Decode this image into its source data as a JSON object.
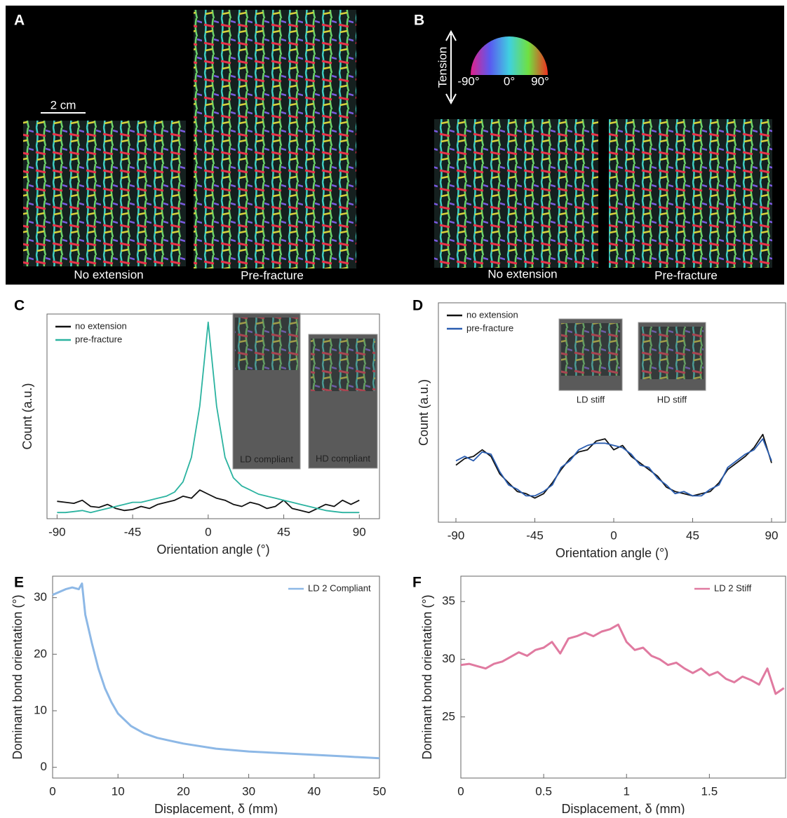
{
  "figure": {
    "panel_labels": [
      "A",
      "B",
      "C",
      "D",
      "E",
      "F"
    ],
    "scale_bar": "2 cm",
    "captions_a": [
      "No extension",
      "Pre-fracture"
    ],
    "captions_b": [
      "No extension",
      "Pre-fracture"
    ],
    "tension": "Tension",
    "colorwheel": [
      "-90°",
      "0°",
      "90°"
    ]
  },
  "chart_data": [
    {
      "type": "line",
      "xlabel": "Orientation angle (°)",
      "ylabel": "Count (a.u.)",
      "legend": "upper left",
      "insets": [
        "LD compliant",
        "HD compliant"
      ],
      "xlim": [
        -96,
        102
      ],
      "xticks": [
        -90,
        -45,
        0,
        45,
        90
      ],
      "ylim": [
        0,
        1
      ],
      "x": [
        -90,
        -85,
        -80,
        -75,
        -70,
        -65,
        -60,
        -55,
        -50,
        -45,
        -40,
        -35,
        -30,
        -25,
        -20,
        -15,
        -10,
        -5,
        0,
        5,
        10,
        15,
        20,
        25,
        30,
        35,
        40,
        45,
        50,
        55,
        60,
        65,
        70,
        75,
        80,
        85,
        90
      ],
      "series": [
        {
          "name": "no extension",
          "color": "#111111",
          "values": [
            0.085,
            0.08,
            0.075,
            0.09,
            0.06,
            0.055,
            0.07,
            0.05,
            0.04,
            0.045,
            0.06,
            0.05,
            0.07,
            0.08,
            0.09,
            0.11,
            0.1,
            0.14,
            0.12,
            0.1,
            0.09,
            0.07,
            0.06,
            0.08,
            0.07,
            0.05,
            0.06,
            0.09,
            0.05,
            0.04,
            0.03,
            0.05,
            0.07,
            0.06,
            0.09,
            0.07,
            0.09
          ]
        },
        {
          "name": "pre-fracture",
          "color": "#2bb3a0",
          "values": [
            0.03,
            0.03,
            0.035,
            0.04,
            0.03,
            0.04,
            0.05,
            0.06,
            0.07,
            0.08,
            0.08,
            0.09,
            0.1,
            0.11,
            0.13,
            0.18,
            0.3,
            0.55,
            0.96,
            0.55,
            0.3,
            0.2,
            0.16,
            0.14,
            0.12,
            0.11,
            0.1,
            0.09,
            0.08,
            0.07,
            0.06,
            0.05,
            0.04,
            0.035,
            0.03,
            0.03,
            0.03
          ]
        }
      ]
    },
    {
      "type": "line",
      "xlabel": "Orientation angle (°)",
      "ylabel": "Count (a.u.)",
      "legend": "upper left",
      "insets": [
        "LD stiff",
        "HD stiff"
      ],
      "xlim": [
        -100,
        98
      ],
      "xticks": [
        -90,
        -45,
        0,
        45,
        90
      ],
      "ylim": [
        0,
        1
      ],
      "x": [
        -90,
        -85,
        -80,
        -75,
        -70,
        -65,
        -60,
        -55,
        -50,
        -45,
        -40,
        -35,
        -30,
        -25,
        -20,
        -15,
        -10,
        -5,
        0,
        5,
        10,
        15,
        20,
        25,
        30,
        35,
        40,
        45,
        50,
        55,
        60,
        65,
        70,
        75,
        80,
        85,
        90
      ],
      "series": [
        {
          "name": "no extension",
          "color": "#111111",
          "values": [
            0.26,
            0.29,
            0.3,
            0.33,
            0.3,
            0.22,
            0.18,
            0.14,
            0.13,
            0.11,
            0.13,
            0.18,
            0.24,
            0.29,
            0.32,
            0.33,
            0.37,
            0.38,
            0.33,
            0.35,
            0.3,
            0.27,
            0.24,
            0.21,
            0.16,
            0.14,
            0.13,
            0.12,
            0.13,
            0.14,
            0.18,
            0.24,
            0.27,
            0.3,
            0.34,
            0.4,
            0.27
          ]
        },
        {
          "name": "pre-fracture",
          "color": "#2a5db0",
          "values": [
            0.28,
            0.3,
            0.28,
            0.32,
            0.31,
            0.23,
            0.17,
            0.15,
            0.12,
            0.12,
            0.14,
            0.17,
            0.25,
            0.28,
            0.33,
            0.35,
            0.36,
            0.36,
            0.35,
            0.34,
            0.31,
            0.26,
            0.25,
            0.2,
            0.17,
            0.13,
            0.14,
            0.12,
            0.12,
            0.15,
            0.17,
            0.25,
            0.28,
            0.31,
            0.33,
            0.38,
            0.28
          ]
        }
      ]
    },
    {
      "type": "line",
      "xlabel": "Displacement, δ (mm)",
      "ylabel": "Dominant bond orientation (°)",
      "legend": "upper right",
      "xlim": [
        0,
        50
      ],
      "xticks": [
        0,
        10,
        20,
        30,
        40,
        50
      ],
      "ylim": [
        -1.9,
        33.8
      ],
      "yticks": [
        0,
        10,
        20,
        30
      ],
      "x": [
        0,
        1,
        2,
        3,
        4,
        4.5,
        5,
        6,
        7,
        8,
        9,
        10,
        12,
        14,
        16,
        18,
        20,
        25,
        30,
        35,
        40,
        45,
        50
      ],
      "series": [
        {
          "name": "LD 2 Compliant",
          "color": "#8db8e6",
          "values": [
            30.5,
            31,
            31.5,
            31.8,
            31.5,
            32.5,
            27,
            22,
            17.5,
            14,
            11.5,
            9.5,
            7.3,
            6,
            5.2,
            4.7,
            4.2,
            3.3,
            2.8,
            2.5,
            2.2,
            1.9,
            1.6
          ]
        }
      ]
    },
    {
      "type": "line",
      "xlabel": "Displacement, δ (mm)",
      "ylabel": "Dominant bond orientation (°)",
      "legend": "upper right",
      "xlim": [
        0,
        1.96
      ],
      "xticks": [
        0,
        0.5,
        1,
        1.5
      ],
      "ylim": [
        19.7,
        37.2
      ],
      "yticks": [
        25,
        30,
        35
      ],
      "x": [
        0,
        0.05,
        0.1,
        0.15,
        0.2,
        0.25,
        0.3,
        0.35,
        0.4,
        0.45,
        0.5,
        0.55,
        0.6,
        0.65,
        0.7,
        0.75,
        0.8,
        0.85,
        0.9,
        0.95,
        1,
        1.05,
        1.1,
        1.15,
        1.2,
        1.25,
        1.3,
        1.35,
        1.4,
        1.45,
        1.5,
        1.55,
        1.6,
        1.65,
        1.7,
        1.75,
        1.8,
        1.85,
        1.9,
        1.95
      ],
      "series": [
        {
          "name": "LD 2 Stiff",
          "color": "#e07aa0",
          "values": [
            29.5,
            29.6,
            29.4,
            29.2,
            29.6,
            29.8,
            30.2,
            30.6,
            30.3,
            30.8,
            31,
            31.5,
            30.5,
            31.8,
            32,
            32.3,
            32,
            32.4,
            32.6,
            33,
            31.5,
            30.8,
            31,
            30.3,
            30,
            29.5,
            29.7,
            29.2,
            28.8,
            29.2,
            28.6,
            28.9,
            28.3,
            28,
            28.5,
            28.2,
            27.8,
            29.2,
            27,
            27.5
          ]
        }
      ]
    }
  ]
}
